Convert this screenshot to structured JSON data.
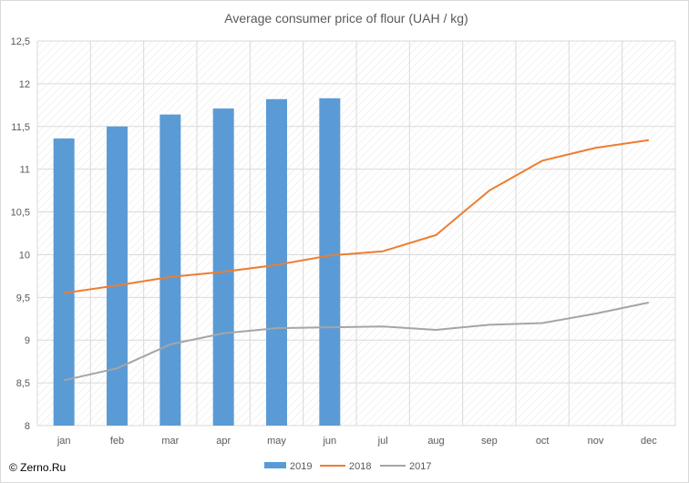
{
  "chart_data": {
    "type": "bar+line",
    "title": "Average consumer price of flour (UAH / kg)",
    "categories": [
      "jan",
      "feb",
      "mar",
      "apr",
      "may",
      "jun",
      "jul",
      "aug",
      "sep",
      "oct",
      "nov",
      "dec"
    ],
    "ylim": [
      8,
      12.5
    ],
    "yticks": [
      "8",
      "8,5",
      "9",
      "9,5",
      "10",
      "10,5",
      "11",
      "11,5",
      "12",
      "12,5"
    ],
    "grid": true,
    "legend_position": "bottom",
    "series": [
      {
        "name": "2019",
        "kind": "bar",
        "color": "#5b9bd5",
        "values": [
          11.36,
          11.5,
          11.64,
          11.71,
          11.82,
          11.83,
          null,
          null,
          null,
          null,
          null,
          null
        ]
      },
      {
        "name": "2018",
        "kind": "line",
        "color": "#ed7d31",
        "values": [
          9.55,
          9.64,
          9.74,
          9.8,
          9.88,
          9.99,
          10.04,
          10.23,
          10.75,
          11.1,
          11.25,
          11.34
        ]
      },
      {
        "name": "2017",
        "kind": "line",
        "color": "#a5a5a5",
        "values": [
          8.53,
          8.67,
          8.95,
          9.08,
          9.14,
          9.15,
          9.16,
          9.12,
          9.18,
          9.2,
          9.31,
          9.44
        ]
      }
    ]
  },
  "source": "© Zerno.Ru"
}
